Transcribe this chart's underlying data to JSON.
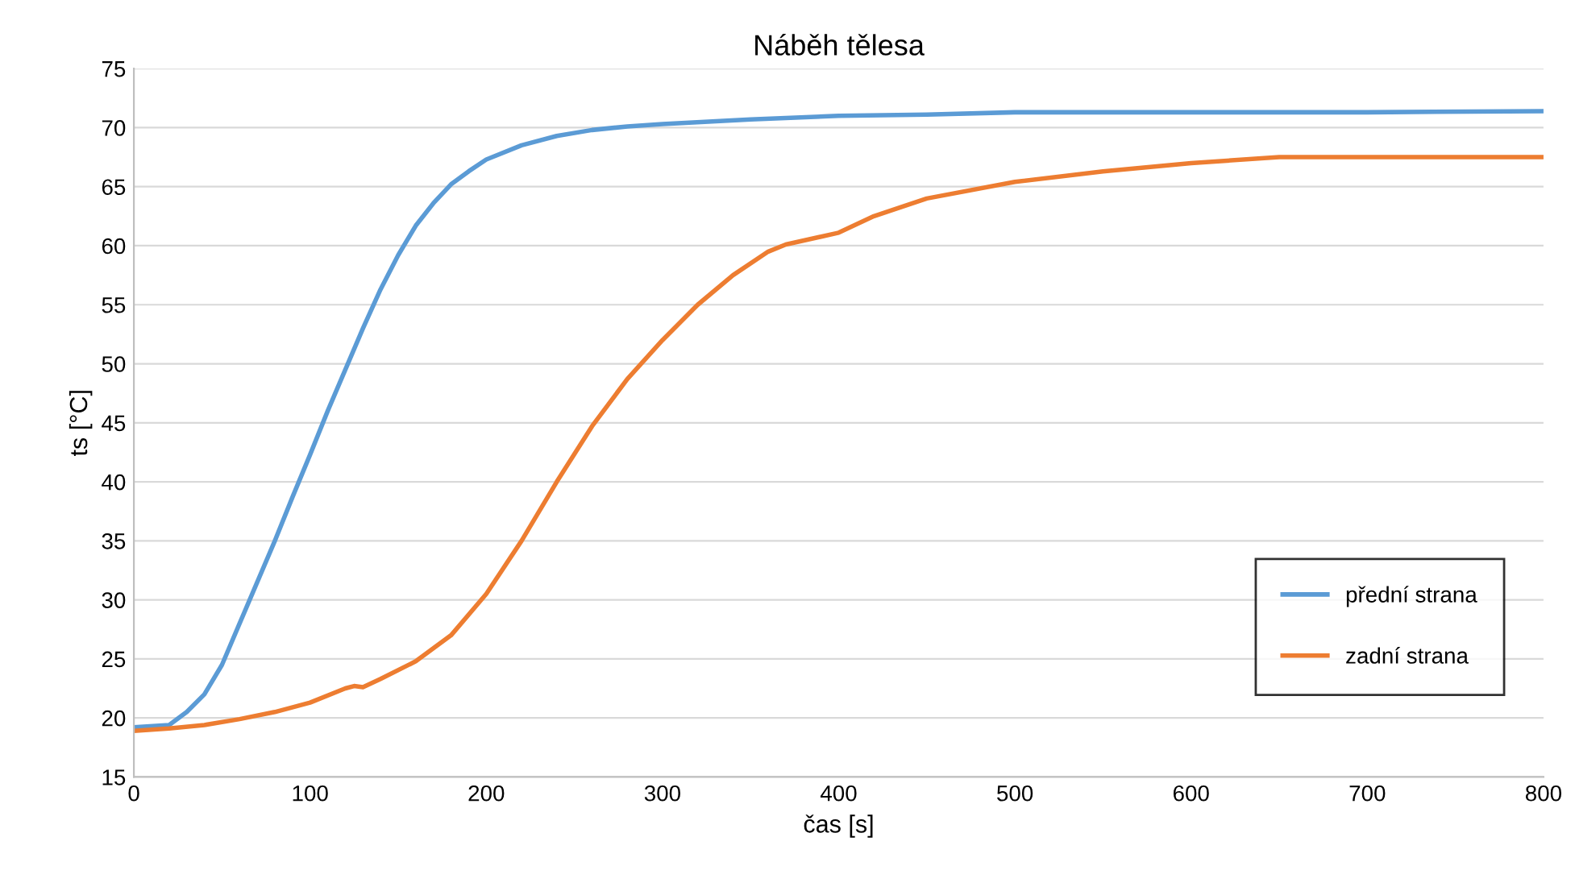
{
  "chart_data": {
    "type": "line",
    "title": "Náběh tělesa",
    "xlabel": "čas [s]",
    "ylabel": "ts [°C]",
    "xlim": [
      0,
      800
    ],
    "xticks": [
      0,
      100,
      200,
      300,
      400,
      500,
      600,
      700,
      800
    ],
    "ylim": [
      15,
      75
    ],
    "yticks": [
      15,
      20,
      25,
      30,
      35,
      40,
      45,
      50,
      55,
      60,
      65,
      70,
      75
    ],
    "grid": "y",
    "legend": "bottom right",
    "marker": "none",
    "line_style": "solid",
    "series": [
      {
        "name": "přední strana",
        "color": "#5b9bd5",
        "x": [
          0,
          20,
          30,
          40,
          50,
          60,
          70,
          80,
          90,
          100,
          110,
          120,
          130,
          140,
          150,
          160,
          170,
          180,
          190,
          200,
          220,
          240,
          260,
          280,
          300,
          350,
          400,
          450,
          500,
          600,
          700,
          800
        ],
        "values": [
          19.2,
          19.4,
          20.5,
          22,
          24.5,
          28,
          31.5,
          35,
          38.7,
          42.3,
          46,
          49.5,
          53,
          56.3,
          59.2,
          61.7,
          63.6,
          65.2,
          66.3,
          67.3,
          68.5,
          69.3,
          69.8,
          70.1,
          70.3,
          70.7,
          71,
          71.1,
          71.3,
          71.3,
          71.3,
          71.4
        ]
      },
      {
        "name": "zadní strana",
        "color": "#ed7d31",
        "x": [
          0,
          20,
          40,
          60,
          80,
          100,
          120,
          125,
          130,
          140,
          160,
          180,
          200,
          220,
          240,
          260,
          280,
          300,
          320,
          340,
          360,
          370,
          400,
          420,
          450,
          500,
          550,
          600,
          650,
          700,
          800
        ],
        "values": [
          18.9,
          19.1,
          19.4,
          19.9,
          20.5,
          21.3,
          22.5,
          22.7,
          22.6,
          23.3,
          24.8,
          27,
          30.5,
          35,
          40,
          44.7,
          48.7,
          52,
          55,
          57.5,
          59.5,
          60.1,
          61.1,
          62.5,
          64,
          65.4,
          66.3,
          67,
          67.5,
          67.5,
          67.5
        ]
      }
    ]
  }
}
